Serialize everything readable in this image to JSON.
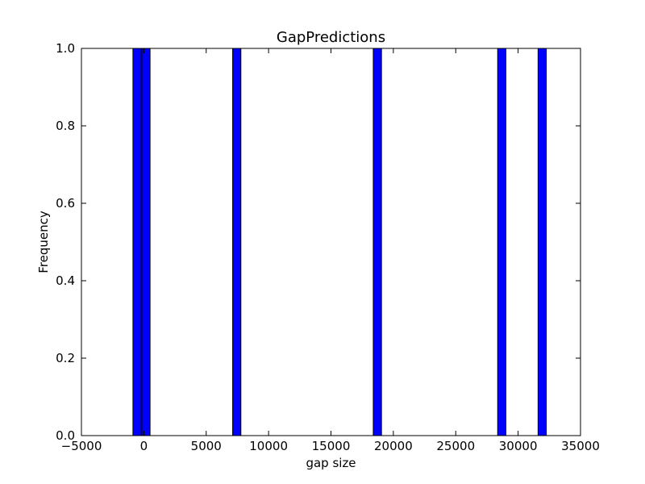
{
  "chart_data": {
    "type": "bar",
    "title": "GapPredictions",
    "xlabel": "gap size",
    "ylabel": "Frequency",
    "xlim": [
      -5000,
      35000
    ],
    "ylim": [
      0,
      1.0
    ],
    "xticks": [
      "−5000",
      "0",
      "5000",
      "10000",
      "15000",
      "20000",
      "25000",
      "30000",
      "35000"
    ],
    "xtick_values": [
      -5000,
      0,
      5000,
      10000,
      15000,
      20000,
      25000,
      30000,
      35000
    ],
    "yticks": [
      "0.0",
      "0.2",
      "0.4",
      "0.6",
      "0.8",
      "1.0"
    ],
    "ytick_values": [
      0,
      0.2,
      0.4,
      0.6,
      0.8,
      1.0
    ],
    "bars": [
      {
        "x0": -870,
        "x1": -210,
        "value": 1
      },
      {
        "x0": -160,
        "x1": 500,
        "value": 1
      },
      {
        "x0": 7120,
        "x1": 7780,
        "value": 1
      },
      {
        "x0": 18390,
        "x1": 19050,
        "value": 1
      },
      {
        "x0": 28360,
        "x1": 29020,
        "value": 1
      },
      {
        "x0": 31600,
        "x1": 32260,
        "value": 1
      }
    ],
    "bar_color": "#0000ff",
    "edge_color": "#000000",
    "grid": false
  }
}
